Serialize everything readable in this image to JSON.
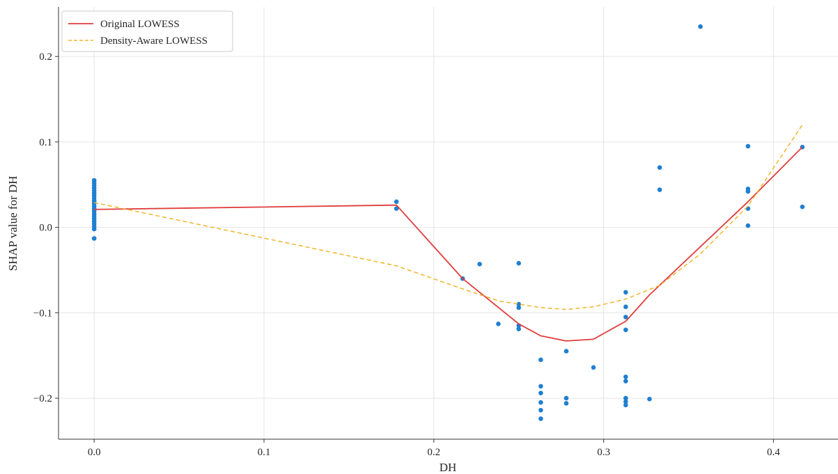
{
  "chart_data": {
    "type": "scatter",
    "title": "",
    "xlabel": "DH",
    "ylabel": "SHAP value for DH",
    "xlim": [
      -0.021,
      0.438
    ],
    "ylim": [
      -0.248,
      0.258
    ],
    "x_ticks": [
      0.0,
      0.1,
      0.2,
      0.3,
      0.4
    ],
    "x_tick_labels": [
      "0.0",
      "0.1",
      "0.2",
      "0.3",
      "0.4"
    ],
    "y_ticks": [
      -0.2,
      -0.1,
      0.0,
      0.1,
      0.2
    ],
    "y_tick_labels": [
      "−0.2",
      "−0.1",
      "0.0",
      "0.1",
      "0.2"
    ],
    "grid": true,
    "legend_position": "top-left",
    "colors": {
      "points": "#1f7fd1",
      "original": "#e03c3c",
      "density": "#f0b429",
      "grid": "#e5e5e5",
      "axis": "#333333"
    },
    "legend": [
      {
        "label": "Original LOWESS",
        "style": "solid",
        "color": "#e03c3c"
      },
      {
        "label": "Density-Aware LOWESS",
        "style": "dashed",
        "color": "#f0b429"
      }
    ],
    "points": [
      [
        0.0,
        0.055
      ],
      [
        0.0,
        0.052
      ],
      [
        0.0,
        0.049
      ],
      [
        0.0,
        0.046
      ],
      [
        0.0,
        0.043
      ],
      [
        0.0,
        0.04
      ],
      [
        0.0,
        0.037
      ],
      [
        0.0,
        0.034
      ],
      [
        0.0,
        0.031
      ],
      [
        0.0,
        0.028
      ],
      [
        0.0,
        0.025
      ],
      [
        0.0,
        0.022
      ],
      [
        0.0,
        0.019
      ],
      [
        0.0,
        0.016
      ],
      [
        0.0,
        0.013
      ],
      [
        0.0,
        0.01
      ],
      [
        0.0,
        0.007
      ],
      [
        0.0,
        0.004
      ],
      [
        0.0,
        0.001
      ],
      [
        0.0,
        -0.002
      ],
      [
        0.0,
        -0.013
      ],
      [
        0.178,
        0.03
      ],
      [
        0.178,
        0.022
      ],
      [
        0.217,
        -0.06
      ],
      [
        0.227,
        -0.043
      ],
      [
        0.238,
        -0.113
      ],
      [
        0.25,
        -0.042
      ],
      [
        0.25,
        -0.09
      ],
      [
        0.25,
        -0.094
      ],
      [
        0.25,
        -0.115
      ],
      [
        0.25,
        -0.119
      ],
      [
        0.263,
        -0.155
      ],
      [
        0.263,
        -0.186
      ],
      [
        0.263,
        -0.194
      ],
      [
        0.263,
        -0.205
      ],
      [
        0.263,
        -0.214
      ],
      [
        0.263,
        -0.224
      ],
      [
        0.278,
        -0.145
      ],
      [
        0.278,
        -0.2
      ],
      [
        0.278,
        -0.206
      ],
      [
        0.294,
        -0.164
      ],
      [
        0.313,
        -0.076
      ],
      [
        0.313,
        -0.093
      ],
      [
        0.313,
        -0.105
      ],
      [
        0.313,
        -0.12
      ],
      [
        0.313,
        -0.175
      ],
      [
        0.313,
        -0.18
      ],
      [
        0.313,
        -0.2
      ],
      [
        0.313,
        -0.204
      ],
      [
        0.313,
        -0.208
      ],
      [
        0.327,
        -0.201
      ],
      [
        0.333,
        0.07
      ],
      [
        0.333,
        0.044
      ],
      [
        0.357,
        0.235
      ],
      [
        0.385,
        0.095
      ],
      [
        0.385,
        0.045
      ],
      [
        0.385,
        0.042
      ],
      [
        0.385,
        0.022
      ],
      [
        0.385,
        0.002
      ],
      [
        0.417,
        0.094
      ],
      [
        0.417,
        0.024
      ]
    ],
    "series": [
      {
        "name": "Original LOWESS",
        "x": [
          0.0,
          0.178,
          0.217,
          0.25,
          0.263,
          0.278,
          0.294,
          0.313,
          0.327,
          0.385,
          0.417
        ],
        "y": [
          0.021,
          0.026,
          -0.06,
          -0.113,
          -0.127,
          -0.133,
          -0.131,
          -0.11,
          -0.079,
          0.03,
          0.094
        ]
      },
      {
        "name": "Density-Aware LOWESS",
        "x": [
          0.0,
          0.178,
          0.217,
          0.238,
          0.263,
          0.278,
          0.294,
          0.313,
          0.333,
          0.357,
          0.385,
          0.417
        ],
        "y": [
          0.029,
          -0.045,
          -0.072,
          -0.086,
          -0.094,
          -0.096,
          -0.093,
          -0.084,
          -0.068,
          -0.031,
          0.025,
          0.12
        ]
      }
    ]
  }
}
